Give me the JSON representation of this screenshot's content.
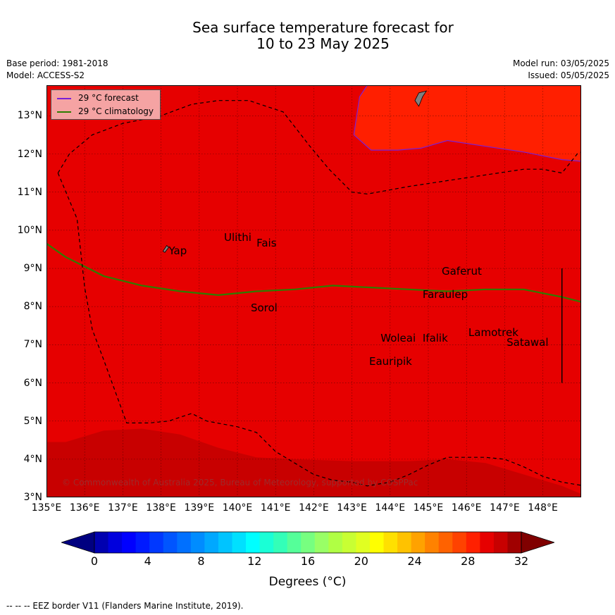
{
  "title": {
    "line1": "Sea surface temperature forecast for",
    "line2": "10 to 23 May 2025"
  },
  "meta": {
    "base_period": "Base period: 1981-2018",
    "model": "Model: ACCESS-S2",
    "model_run": "Model run: 03/05/2025",
    "issued": "Issued: 05/05/2025"
  },
  "map": {
    "lon_range": [
      135,
      149
    ],
    "lat_range": [
      3,
      13.8
    ],
    "x_ticks": [
      "135°E",
      "136°E",
      "137°E",
      "138°E",
      "139°E",
      "140°E",
      "141°E",
      "142°E",
      "143°E",
      "144°E",
      "145°E",
      "146°E",
      "147°E",
      "148°E"
    ],
    "y_ticks": [
      "3°N",
      "4°N",
      "5°N",
      "6°N",
      "7°N",
      "8°N",
      "9°N",
      "10°N",
      "11°N",
      "12°N",
      "13°N"
    ],
    "colors": {
      "base": "#e60000",
      "warm": "#ff1f00",
      "cool": "#c80000",
      "forecast_line": "#7a1fd6",
      "climatology_line": "#2e7d00",
      "land": "#808080"
    },
    "places": [
      {
        "name": "Ulithi",
        "lon": 139.65,
        "lat": 9.8
      },
      {
        "name": "Fais",
        "lon": 140.5,
        "lat": 9.65
      },
      {
        "name": "Yap",
        "lon": 138.2,
        "lat": 9.45
      },
      {
        "name": "Gaferut",
        "lon": 145.35,
        "lat": 8.9
      },
      {
        "name": "Faraulep",
        "lon": 144.85,
        "lat": 8.3
      },
      {
        "name": "Sorol",
        "lon": 140.35,
        "lat": 7.95
      },
      {
        "name": "Lamotrek",
        "lon": 146.05,
        "lat": 7.3
      },
      {
        "name": "Woleai",
        "lon": 143.75,
        "lat": 7.15
      },
      {
        "name": "Ifalik",
        "lon": 144.85,
        "lat": 7.15
      },
      {
        "name": "Satawal",
        "lon": 147.05,
        "lat": 7.05
      },
      {
        "name": "Eauripik",
        "lon": 143.45,
        "lat": 6.55
      }
    ],
    "forecast_isotherm": [
      [
        143.05,
        12.5
      ],
      [
        143.2,
        13.5
      ],
      [
        143.4,
        13.8
      ],
      [
        149.1,
        13.8
      ],
      [
        149.1,
        11.8
      ],
      [
        148.5,
        11.85
      ],
      [
        147.5,
        12.05
      ],
      [
        146.5,
        12.2
      ],
      [
        145.5,
        12.35
      ],
      [
        144.8,
        12.15
      ],
      [
        144.2,
        12.1
      ],
      [
        143.5,
        12.1
      ],
      [
        143.05,
        12.5
      ]
    ],
    "climatology_isotherm": [
      [
        135,
        9.65
      ],
      [
        135.5,
        9.3
      ],
      [
        136,
        9.05
      ],
      [
        136.5,
        8.8
      ],
      [
        137.5,
        8.55
      ],
      [
        138.5,
        8.4
      ],
      [
        139.5,
        8.3
      ],
      [
        140.5,
        8.4
      ],
      [
        141.5,
        8.45
      ],
      [
        142.5,
        8.55
      ],
      [
        143.5,
        8.5
      ],
      [
        144.5,
        8.45
      ],
      [
        145.5,
        8.4
      ],
      [
        146.5,
        8.45
      ],
      [
        147.5,
        8.45
      ],
      [
        148.5,
        8.25
      ],
      [
        149.1,
        8.1
      ]
    ],
    "cool_region": [
      [
        135,
        4.45
      ],
      [
        135.5,
        4.45
      ],
      [
        136.5,
        4.75
      ],
      [
        137.5,
        4.8
      ],
      [
        138.5,
        4.65
      ],
      [
        139.5,
        4.3
      ],
      [
        140.5,
        4.05
      ],
      [
        141.5,
        4.0
      ],
      [
        143,
        3.95
      ],
      [
        144.5,
        3.95
      ],
      [
        145.5,
        4.0
      ],
      [
        146.5,
        3.9
      ],
      [
        147.5,
        3.6
      ],
      [
        148.5,
        3.3
      ],
      [
        149.1,
        3.05
      ],
      [
        149.1,
        2.9
      ],
      [
        135,
        2.9
      ]
    ],
    "eez_north": [
      [
        135.3,
        11.5
      ],
      [
        135.6,
        12.0
      ],
      [
        136.2,
        12.5
      ],
      [
        137,
        12.8
      ],
      [
        138,
        13.0
      ],
      [
        138.8,
        13.3
      ],
      [
        139.5,
        13.4
      ],
      [
        140.3,
        13.4
      ],
      [
        141.2,
        13.1
      ],
      [
        141.9,
        12.2
      ],
      [
        142.4,
        11.6
      ],
      [
        143,
        11.0
      ],
      [
        143.4,
        10.95
      ],
      [
        144.5,
        11.15
      ],
      [
        145.5,
        11.3
      ],
      [
        146.5,
        11.45
      ],
      [
        147.5,
        11.6
      ],
      [
        148.0,
        11.6
      ],
      [
        148.5,
        11.5
      ],
      [
        148.9,
        12.0
      ],
      [
        149.1,
        12.1
      ]
    ],
    "eez_west": [
      [
        135.3,
        11.5
      ],
      [
        135.8,
        10.3
      ],
      [
        136.0,
        8.5
      ],
      [
        136.2,
        7.4
      ],
      [
        136.5,
        6.6
      ],
      [
        136.9,
        5.5
      ],
      [
        137.1,
        4.95
      ],
      [
        137.7,
        4.95
      ],
      [
        138.2,
        5.0
      ],
      [
        138.8,
        5.2
      ],
      [
        139.2,
        5.0
      ],
      [
        140,
        4.85
      ],
      [
        140.5,
        4.7
      ],
      [
        141,
        4.2
      ],
      [
        141.5,
        3.9
      ],
      [
        142,
        3.6
      ],
      [
        142.5,
        3.45
      ],
      [
        143,
        3.4
      ],
      [
        143.4,
        3.3
      ],
      [
        144,
        3.4
      ],
      [
        144.5,
        3.6
      ],
      [
        145,
        3.85
      ],
      [
        145.5,
        4.05
      ],
      [
        146,
        4.05
      ],
      [
        146.5,
        4.05
      ],
      [
        147,
        4.0
      ],
      [
        147.5,
        3.8
      ],
      [
        148.0,
        3.55
      ],
      [
        148.5,
        3.4
      ],
      [
        149.1,
        3.3
      ]
    ],
    "eez_east": [
      [
        148.5,
        9.0
      ],
      [
        148.5,
        6.0
      ]
    ],
    "guam": [
      [
        144.65,
        13.4
      ],
      [
        144.75,
        13.6
      ],
      [
        144.95,
        13.65
      ],
      [
        144.85,
        13.5
      ],
      [
        144.75,
        13.25
      ],
      [
        144.65,
        13.4
      ]
    ]
  },
  "legend": {
    "forecast_label": "29 °C  forecast",
    "climatology_label": "29 °C  climatology"
  },
  "copyright": "© Commonwealth of Australia 2025, Bureau of Meteorology, supported by COSPPac",
  "colorbar": {
    "ticks": [
      "0",
      "4",
      "8",
      "12",
      "16",
      "20",
      "24",
      "28",
      "32"
    ],
    "min": 0,
    "max": 32,
    "step": 1,
    "label": "Degrees (°C)",
    "colors": [
      "#000080",
      "#0000b0",
      "#0000dd",
      "#0000ff",
      "#001aff",
      "#0038ff",
      "#0055ff",
      "#0070ff",
      "#008cff",
      "#00a8ff",
      "#00c4ff",
      "#00e0ff",
      "#00ffff",
      "#1affd6",
      "#33ffb8",
      "#55ff99",
      "#77ff80",
      "#99ff66",
      "#b0ff44",
      "#c8ff33",
      "#e0ff22",
      "#ffff00",
      "#ffe000",
      "#ffc200",
      "#ffa200",
      "#ff8200",
      "#ff6200",
      "#ff4200",
      "#ff2000",
      "#e60000",
      "#c80000",
      "#a00000",
      "#800000"
    ]
  },
  "footnote": "--  --  -- EEZ border V11 (Flanders Marine Institute, 2019)."
}
